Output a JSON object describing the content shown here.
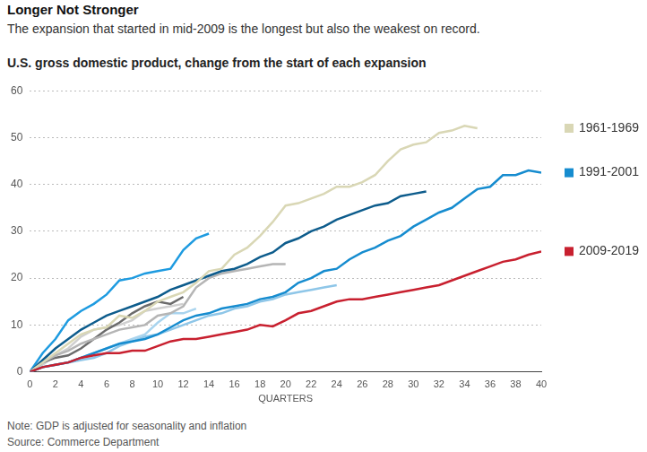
{
  "chart_data": {
    "type": "line",
    "title": "Longer Not Stronger",
    "subtitle": "The expansion that started in mid-2009 is the longest but also the weakest on record.",
    "y_label": "U.S. gross domestic product, change from the start of each expansion",
    "x_label": "QUARTERS",
    "notes": [
      "Note: GDP is adjusted for seasonality and inflation",
      "Source: Commerce Department"
    ],
    "x": [
      0,
      1,
      2,
      3,
      4,
      5,
      6,
      7,
      8,
      9,
      10,
      11,
      12,
      13,
      14,
      15,
      16,
      17,
      18,
      19,
      20,
      21,
      22,
      23,
      24,
      25,
      26,
      27,
      28,
      29,
      30,
      31,
      32,
      33,
      34,
      35,
      36,
      37,
      38,
      39,
      40
    ],
    "xlim": [
      0,
      40
    ],
    "xticks": [
      0,
      2,
      4,
      6,
      8,
      10,
      12,
      14,
      16,
      18,
      20,
      22,
      24,
      26,
      28,
      30,
      32,
      34,
      36,
      38,
      40
    ],
    "ylim": [
      0,
      60
    ],
    "yticks": [
      0,
      10,
      20,
      30,
      40,
      50,
      60
    ],
    "grid": true,
    "legend": "right",
    "series": [
      {
        "name": "2009-2019",
        "color": "#c8202f",
        "values": [
          0,
          1,
          1.5,
          2,
          3,
          3.5,
          4,
          4,
          4.5,
          4.5,
          5.5,
          6.5,
          7,
          7,
          7.5,
          8,
          8.5,
          9,
          10,
          9.7,
          11,
          12.5,
          13,
          14,
          15,
          15.5,
          15.5,
          16,
          16.5,
          17,
          17.5,
          18,
          18.5,
          19.5,
          20.5,
          21.5,
          22.5,
          23.5,
          24,
          25,
          25.7
        ]
      },
      {
        "name": "1991-2001",
        "color": "#168ccf",
        "values": [
          0,
          1,
          1.5,
          2,
          3,
          4,
          5,
          6,
          6.5,
          7,
          8,
          9.5,
          11,
          12,
          12.5,
          13.5,
          14,
          14.5,
          15.5,
          16,
          17,
          19,
          20,
          21.5,
          22,
          24,
          25.5,
          26.5,
          28,
          29,
          31,
          32.5,
          34,
          35,
          37,
          39,
          39.5,
          42,
          42,
          43,
          42.5
        ]
      },
      {
        "name": "1961-1969",
        "color": "#d9d7b5",
        "values": [
          0,
          2,
          4,
          6,
          8,
          9,
          9.5,
          12,
          11.5,
          13,
          15,
          16,
          17,
          19,
          21.5,
          22,
          25,
          26.5,
          29,
          32,
          35.5,
          36,
          37,
          38,
          39.5,
          39.5,
          40.5,
          42,
          45,
          47.5,
          48.5,
          49,
          51,
          51.5,
          52.5,
          52,
          null,
          null,
          null,
          null,
          null
        ]
      },
      {
        "color": "#0d5c8c",
        "values": [
          0,
          2.5,
          5,
          7,
          9,
          10.5,
          12,
          13,
          14,
          15,
          16,
          17.5,
          18.5,
          19.5,
          20.5,
          21.5,
          22,
          23,
          24.5,
          25.5,
          27.5,
          28.5,
          30,
          31,
          32.5,
          33.5,
          34.5,
          35.5,
          36,
          37.5,
          38,
          38.5,
          null,
          null,
          null,
          null,
          null,
          null,
          null,
          null,
          null
        ]
      },
      {
        "color": "#1e9be0",
        "values": [
          0,
          4,
          7,
          11,
          13,
          14.5,
          16.5,
          19.5,
          20,
          21,
          21.5,
          22,
          26,
          28.5,
          29.5,
          null,
          null,
          null,
          null,
          null,
          null,
          null,
          null,
          null,
          null,
          null,
          null,
          null,
          null,
          null,
          null,
          null,
          null,
          null,
          null,
          null,
          null,
          null,
          null,
          null,
          null
        ]
      },
      {
        "color": "#8ec6e8",
        "values": [
          0,
          1,
          1.5,
          2,
          2.5,
          3,
          4,
          5.5,
          6.5,
          7.5,
          8,
          9,
          10,
          11,
          12,
          12.5,
          13.5,
          14,
          15,
          15.5,
          16.5,
          17,
          17.5,
          18,
          18.5,
          null,
          null,
          null,
          null,
          null,
          null,
          null,
          null,
          null,
          null,
          null,
          null,
          null,
          null,
          null,
          null
        ]
      },
      {
        "color": "#b5b5b5",
        "values": [
          0,
          2,
          3.5,
          4.5,
          6,
          7,
          8,
          9,
          9.5,
          10,
          12,
          12.5,
          14,
          18,
          20,
          21,
          21.5,
          22,
          22.5,
          23,
          23,
          null,
          null,
          null,
          null,
          null,
          null,
          null,
          null,
          null,
          null,
          null,
          null,
          null,
          null,
          null,
          null,
          null,
          null,
          null,
          null
        ]
      },
      {
        "color": "#6b6b6b",
        "values": [
          0,
          2,
          3,
          3.5,
          5,
          7,
          9,
          10.5,
          12.5,
          14,
          15,
          14.5,
          16,
          null,
          null,
          null,
          null,
          null,
          null,
          null,
          null,
          null,
          null,
          null,
          null,
          null,
          null,
          null,
          null,
          null,
          null,
          null,
          null,
          null,
          null,
          null,
          null,
          null,
          null,
          null,
          null
        ]
      },
      {
        "color": "#cfcfcf",
        "values": [
          0,
          1.5,
          3.5,
          5,
          7.5,
          9,
          9.5,
          10,
          11,
          13,
          13.5,
          14,
          14.5,
          null,
          null,
          null,
          null,
          null,
          null,
          null,
          null,
          null,
          null,
          null,
          null,
          null,
          null,
          null,
          null,
          null,
          null,
          null,
          null,
          null,
          null,
          null,
          null,
          null,
          null,
          null,
          null
        ]
      },
      {
        "color": "#a9d4ee",
        "values": [
          0,
          1,
          1.5,
          2,
          3,
          4,
          5,
          6,
          7,
          8,
          10.5,
          12.5,
          12.5,
          13.5,
          null,
          null,
          null,
          null,
          null,
          null,
          null,
          null,
          null,
          null,
          null,
          null,
          null,
          null,
          null,
          null,
          null,
          null,
          null,
          null,
          null,
          null,
          null,
          null,
          null,
          null,
          null
        ]
      }
    ]
  }
}
